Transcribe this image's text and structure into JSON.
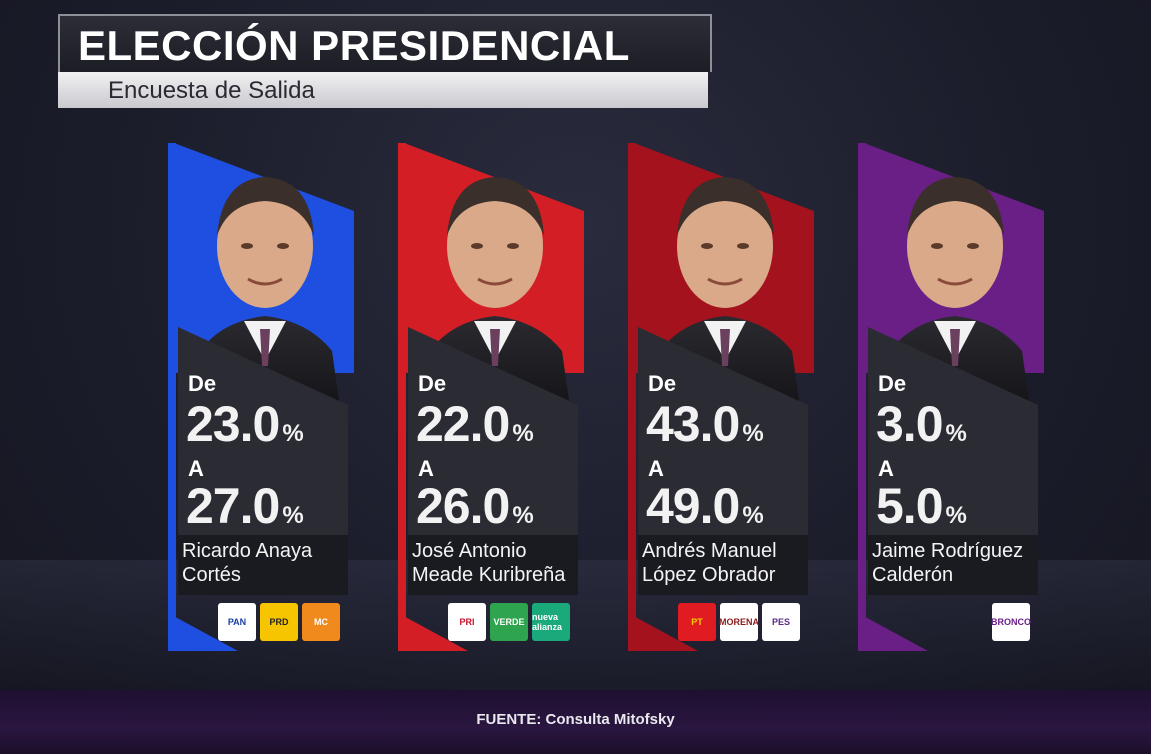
{
  "header": {
    "title": "ELECCIÓN PRESIDENCIAL",
    "subtitle": "Encuesta de Salida"
  },
  "label_from": "De",
  "label_to": "A",
  "percent_sign": "%",
  "candidates": [
    {
      "name_line1": "Ricardo Anaya",
      "name_line2": "Cortés",
      "from": "23.0",
      "to": "27.0",
      "color": "#1f4fe0",
      "parties": [
        {
          "label": "PAN",
          "bg": "#ffffff",
          "fg": "#1a3fa6"
        },
        {
          "label": "PRD",
          "bg": "#f6c500",
          "fg": "#222222"
        },
        {
          "label": "MC",
          "bg": "#f08a1c",
          "fg": "#ffffff"
        }
      ]
    },
    {
      "name_line1": "José Antonio",
      "name_line2": "Meade Kuribreña",
      "from": "22.0",
      "to": "26.0",
      "color": "#d41e25",
      "parties": [
        {
          "label": "PRI",
          "bg": "#ffffff",
          "fg": "#c8102e"
        },
        {
          "label": "VERDE",
          "bg": "#2ea44f",
          "fg": "#ffffff"
        },
        {
          "label": "nueva alianza",
          "bg": "#19a97b",
          "fg": "#ffffff"
        }
      ]
    },
    {
      "name_line1": "Andrés Manuel",
      "name_line2": "López Obrador",
      "from": "43.0",
      "to": "49.0",
      "color": "#a3121d",
      "parties": [
        {
          "label": "PT",
          "bg": "#e01b22",
          "fg": "#f6d100"
        },
        {
          "label": "MORENA",
          "bg": "#ffffff",
          "fg": "#8a1c1c"
        },
        {
          "label": "PES",
          "bg": "#ffffff",
          "fg": "#5b2a86"
        }
      ]
    },
    {
      "name_line1": "Jaime Rodríguez",
      "name_line2": "Calderón",
      "from": "3.0",
      "to": "5.0",
      "color": "#6a1f86",
      "parties": [
        {
          "label": "BRONCO",
          "bg": "#ffffff",
          "fg": "#6b1f8a"
        }
      ]
    }
  ],
  "source": "FUENTE: Consulta Mitofsky"
}
